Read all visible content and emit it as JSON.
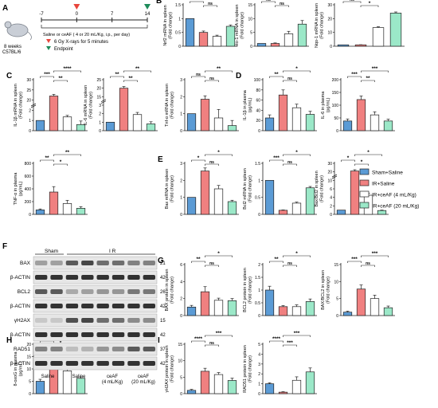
{
  "colors": {
    "sham": "#5B9BD5",
    "ir": "#F08080",
    "ir4": "#FFFFFF",
    "ir20": "#9BE8C8",
    "stroke": "#222222",
    "red_marker": "#E8453C",
    "green_marker": "#1E8B5A"
  },
  "schematic": {
    "panel_label": "A",
    "mouse_caption_1": "8 weeks",
    "mouse_caption_2": "C57BL/6",
    "timeline_days": [
      "-7",
      "0",
      "7",
      "14"
    ],
    "timeline_caption": "Saline or ceAF ( 4 or 20 mL/Kg, i.p., per day)",
    "xray_caption": "6 Gy X-rays for 5 minutes",
    "endpoint_caption": "Endpoint"
  },
  "legend": [
    "Sham+Saline",
    "IR+Saline",
    "IR+ceAF (4 mL/Kg)",
    "IR+ceAF (20 mL/Kg)"
  ],
  "chart_data": [
    {
      "type": "bar",
      "panel": "B",
      "ylabel": "Nrf2 mRNA in spleen (Fold change)",
      "yticks": [
        0,
        0.5,
        1.0,
        1.5
      ],
      "values": [
        1.0,
        0.5,
        0.36,
        0.72
      ],
      "errors": [
        0.0,
        0.05,
        0.04,
        0.05
      ],
      "sig": [
        "*",
        "ns",
        "*"
      ]
    },
    {
      "type": "bar",
      "ylabel": "Ho-1 mRNA in spleen (Fold change)",
      "yticks": [
        0,
        5,
        10,
        15
      ],
      "values": [
        1.0,
        1.0,
        4.5,
        8.0
      ],
      "errors": [
        0.0,
        0.2,
        0.9,
        1.3
      ],
      "sig": [
        "ns",
        "ns",
        "*"
      ]
    },
    {
      "type": "bar",
      "ylabel": "Nqo-1 mRNA in spleen (Fold change)",
      "yticks": [
        0,
        10,
        20,
        30
      ],
      "values": [
        1.0,
        1.0,
        13.5,
        24.0
      ],
      "errors": [
        0.0,
        0.1,
        0.6,
        0.8
      ],
      "sig": [
        "ns",
        "*",
        "**"
      ]
    },
    {
      "type": "bar",
      "panel": "C",
      "ylabel": "IL-1β mRNA in spleen (Fold change)",
      "yticks": [
        0,
        1,
        2,
        20,
        25,
        30
      ],
      "values": [
        1.0,
        22.0,
        1.35,
        0.6
      ],
      "errors": [
        0.0,
        0.8,
        0.15,
        0.35
      ],
      "sig": [
        "***",
        "**",
        "****"
      ]
    },
    {
      "type": "bar",
      "ylabel": "IL-6 mRNA in spleen (Fold change)",
      "yticks": [
        0,
        1,
        2,
        3,
        15,
        20,
        25
      ],
      "values": [
        1.0,
        20.0,
        1.9,
        0.8
      ],
      "errors": [
        0.0,
        1.0,
        0.25,
        0.25
      ],
      "sig": [
        "**",
        "**",
        "**"
      ]
    },
    {
      "type": "bar",
      "ylabel": "Tnf-α mRNA in spleen (Fold change)",
      "yticks": [
        0,
        1,
        2,
        3
      ],
      "values": [
        1.0,
        1.85,
        0.75,
        0.3
      ],
      "errors": [
        0.0,
        0.2,
        0.5,
        0.3
      ],
      "sig": [
        "ns",
        "ns",
        "**"
      ]
    },
    {
      "type": "bar",
      "panel": "D",
      "ylabel": "IL-1β in plasma (pg/mL)",
      "yticks": [
        0,
        20,
        40,
        60,
        80,
        100
      ],
      "values": [
        25,
        70,
        45,
        32
      ],
      "errors": [
        6,
        10,
        7,
        6
      ],
      "sig": [
        "**",
        "ns",
        "*"
      ]
    },
    {
      "type": "bar",
      "ylabel": "IL-6 in plasma (pg/mL)",
      "yticks": [
        0,
        50,
        100,
        150,
        200
      ],
      "values": [
        38,
        122,
        62,
        38
      ],
      "errors": [
        8,
        14,
        12,
        7
      ],
      "sig": [
        "***",
        "**",
        "***"
      ]
    },
    {
      "type": "bar",
      "ylabel": "TNF-α in plasma (pg/mL)",
      "yticks": [
        0,
        200,
        400,
        600,
        800
      ],
      "values": [
        70,
        350,
        170,
        95
      ],
      "errors": [
        15,
        85,
        50,
        25
      ],
      "sig": [
        "**",
        "*",
        "**"
      ]
    },
    {
      "type": "bar",
      "panel": "E",
      "ylabel": "Bax mRNA in spleen (Fold change)",
      "yticks": [
        0,
        1,
        2,
        3
      ],
      "values": [
        1.0,
        2.55,
        1.5,
        0.75
      ],
      "errors": [
        0.0,
        0.18,
        0.2,
        0.08
      ],
      "sig": [
        "*",
        "ns",
        "*"
      ]
    },
    {
      "type": "bar",
      "ylabel": "Bcl2 mRNA in spleen (Fold change)",
      "yticks": [
        0,
        0.5,
        1.0,
        1.5
      ],
      "values": [
        1.0,
        0.12,
        0.33,
        0.78
      ],
      "errors": [
        0.0,
        0.01,
        0.03,
        0.04
      ],
      "sig": [
        "***",
        "ns",
        "*"
      ]
    },
    {
      "type": "bar",
      "ylabel": "Bax/Bcl2 in spleen (Fold change)",
      "yticks": [
        0,
        2,
        4,
        6,
        10,
        20,
        30
      ],
      "values": [
        1.0,
        21.0,
        4.5,
        0.9
      ],
      "errors": [
        0.0,
        1.5,
        0.5,
        0.1
      ],
      "sig": [
        "*",
        "*",
        "*"
      ]
    },
    {
      "type": "bar",
      "panel": "G",
      "ylabel": "BAX protein in spleen (Fold change)",
      "yticks": [
        0,
        2,
        4,
        6
      ],
      "values": [
        1.0,
        2.8,
        1.8,
        1.75
      ],
      "errors": [
        0.2,
        0.6,
        0.25,
        0.25
      ],
      "sig": [
        "**",
        "ns",
        "*"
      ]
    },
    {
      "type": "bar",
      "ylabel": "BCL2 protein in spleen (Fold change)",
      "yticks": [
        0,
        0.5,
        1.0,
        1.5,
        2.0
      ],
      "values": [
        1.0,
        0.35,
        0.35,
        0.55
      ],
      "errors": [
        0.15,
        0.04,
        0.07,
        0.1
      ],
      "sig": [
        "**",
        "ns",
        "*"
      ]
    },
    {
      "type": "bar",
      "ylabel": "BAX/BCL2 in spleen (Fold change)",
      "yticks": [
        0,
        5,
        10,
        15
      ],
      "values": [
        1.0,
        7.8,
        5.0,
        2.3
      ],
      "errors": [
        0.3,
        1.2,
        1.0,
        0.5
      ],
      "sig": [
        "***",
        "ns",
        "***"
      ]
    },
    {
      "type": "bar",
      "panel": "H",
      "ylabel": "8-oxoG in plasma (pg/mL)",
      "yticks": [
        0,
        5,
        10,
        15,
        20
      ],
      "values": [
        5.0,
        12.2,
        9.2,
        6.2
      ],
      "errors": [
        0.8,
        1.5,
        0.8,
        0.6
      ],
      "sig": [
        "***",
        "*",
        "**"
      ]
    },
    {
      "type": "bar",
      "panel": "I",
      "ylabel": "γH2AX protein in spleen (Fold change)",
      "yticks": [
        0,
        5,
        10,
        15
      ],
      "values": [
        1.0,
        6.8,
        5.8,
        4.0
      ],
      "errors": [
        0.3,
        0.9,
        0.6,
        0.7
      ],
      "sig": [
        "****",
        "ns",
        "***"
      ]
    },
    {
      "type": "bar",
      "ylabel": "RAD51 protein in spleen (Fold change)",
      "yticks": [
        0,
        1,
        2,
        3,
        4,
        5
      ],
      "values": [
        1.0,
        0.15,
        1.35,
        2.2
      ],
      "errors": [
        0.1,
        0.05,
        0.35,
        0.4
      ],
      "sig": [
        "****",
        "***",
        "***"
      ]
    }
  ],
  "western": {
    "panel_label": "F",
    "group_sham": "Sham",
    "group_ir": "I R",
    "bands": [
      {
        "label": "BAX",
        "kda": "21"
      },
      {
        "label": "β-ACTIN",
        "kda": "42"
      },
      {
        "label": "BCL2",
        "kda": "26"
      },
      {
        "label": "β-ACTIN",
        "kda": "42"
      },
      {
        "label": "γH2AX",
        "kda": "15"
      },
      {
        "label": "β-ACTIN",
        "kda": "42"
      },
      {
        "label": "RAD51",
        "kda": "37"
      },
      {
        "label": "β-ACTIN",
        "kda": "42"
      }
    ],
    "lanes": [
      "Saline",
      "Saline",
      "ceAF (4 mL/Kg)",
      "ceAF (20 mL/Kg)"
    ]
  }
}
